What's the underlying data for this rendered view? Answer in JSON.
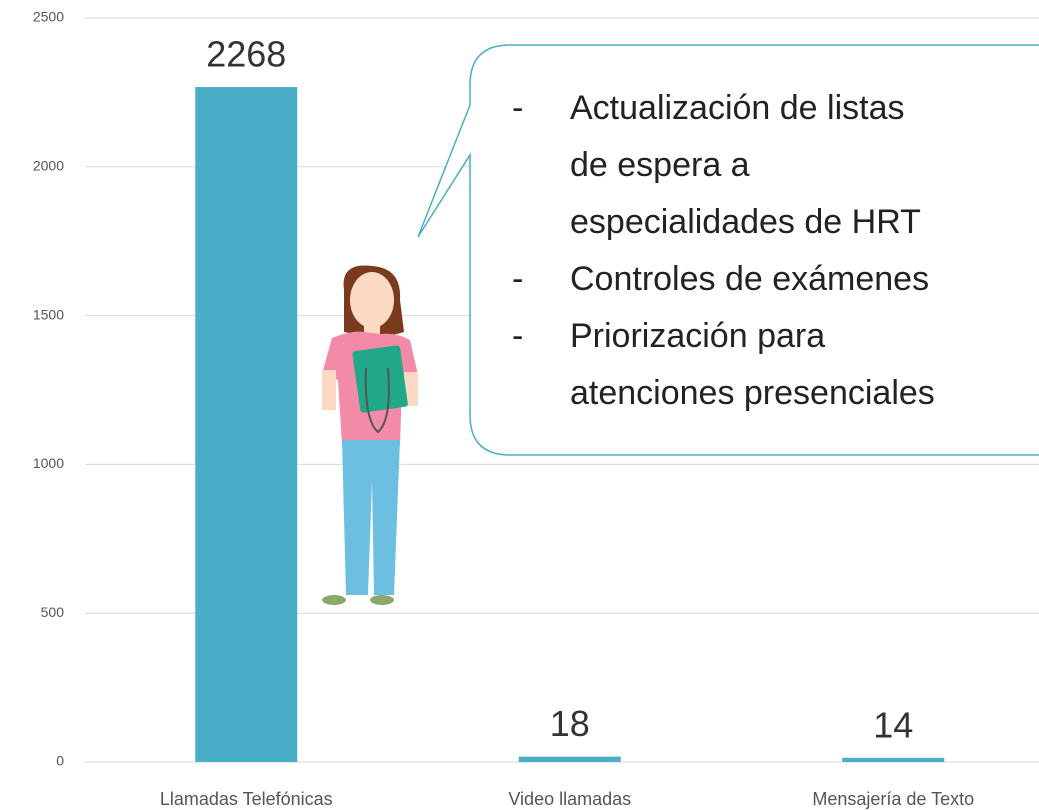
{
  "chart_data": {
    "type": "bar",
    "categories": [
      "Llamadas Telefónicas",
      "Video llamadas",
      "Mensajería de Texto"
    ],
    "values": [
      2268,
      18,
      14
    ],
    "color": "#4aaec8",
    "ylim": [
      0,
      2500
    ],
    "yticks": [
      0,
      500,
      1000,
      1500,
      2000,
      2500
    ],
    "grid": true,
    "annotation": [
      {
        "marker": "-",
        "lines": [
          "Actualización de listas",
          "de espera a",
          "especialidades de HRT"
        ]
      },
      {
        "marker": "-",
        "lines": [
          "Controles de exámenes"
        ]
      },
      {
        "marker": "-",
        "lines": [
          "Priorización para",
          "atenciones presenciales"
        ]
      }
    ]
  }
}
